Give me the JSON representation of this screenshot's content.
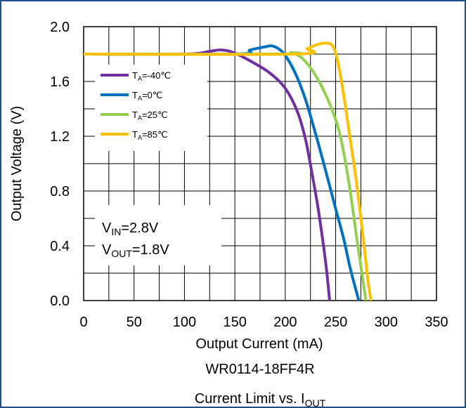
{
  "chart_data": {
    "type": "line",
    "xlabel": "Output Current (mA)",
    "ylabel": "Output Voltage (V)",
    "xlim": [
      0,
      350
    ],
    "ylim": [
      0.0,
      2.0
    ],
    "x_ticks": [
      "0",
      "50",
      "100",
      "150",
      "200",
      "250",
      "300",
      "350"
    ],
    "y_ticks": [
      "0.0",
      "0.4",
      "0.8",
      "1.2",
      "1.6",
      "2.0"
    ],
    "grid": true,
    "legend_position": "top-left",
    "series": [
      {
        "name_main": "T",
        "name_sub": "A",
        "name_tail": "=-40℃",
        "color": "#7030A0",
        "points": [
          [
            0,
            1.8
          ],
          [
            100,
            1.8
          ],
          [
            125,
            1.82
          ],
          [
            135,
            1.83
          ],
          [
            145,
            1.82
          ],
          [
            155,
            1.79
          ],
          [
            170,
            1.73
          ],
          [
            185,
            1.66
          ],
          [
            200,
            1.55
          ],
          [
            212,
            1.38
          ],
          [
            220,
            1.18
          ],
          [
            226,
            0.95
          ],
          [
            232,
            0.7
          ],
          [
            237,
            0.45
          ],
          [
            241,
            0.22
          ],
          [
            244,
            0.0
          ]
        ]
      },
      {
        "name_main": "T",
        "name_sub": "A",
        "name_tail": "=0℃",
        "color": "#0070C0",
        "points": [
          [
            0,
            1.8
          ],
          [
            150,
            1.8
          ],
          [
            165,
            1.83
          ],
          [
            178,
            1.85
          ],
          [
            186,
            1.86
          ],
          [
            193,
            1.84
          ],
          [
            200,
            1.79
          ],
          [
            210,
            1.66
          ],
          [
            220,
            1.47
          ],
          [
            230,
            1.22
          ],
          [
            240,
            0.95
          ],
          [
            250,
            0.67
          ],
          [
            258,
            0.45
          ],
          [
            264,
            0.25
          ],
          [
            270,
            0.08
          ],
          [
            273,
            0.0
          ]
        ]
      },
      {
        "name_main": "T",
        "name_sub": "A",
        "name_tail": "=25℃",
        "color": "#92D050",
        "points": [
          [
            0,
            1.8
          ],
          [
            200,
            1.8
          ],
          [
            205,
            1.81
          ],
          [
            215,
            1.78
          ],
          [
            225,
            1.7
          ],
          [
            235,
            1.58
          ],
          [
            245,
            1.42
          ],
          [
            253,
            1.25
          ],
          [
            260,
            1.0
          ],
          [
            266,
            0.72
          ],
          [
            271,
            0.45
          ],
          [
            275,
            0.25
          ],
          [
            278,
            0.1
          ],
          [
            280,
            0.0
          ]
        ]
      },
      {
        "name_main": "T",
        "name_sub": "A",
        "name_tail": "=85℃",
        "color": "#FFC000",
        "points": [
          [
            0,
            1.8
          ],
          [
            210,
            1.8
          ],
          [
            222,
            1.84
          ],
          [
            232,
            1.87
          ],
          [
            240,
            1.88
          ],
          [
            247,
            1.86
          ],
          [
            252,
            1.75
          ],
          [
            258,
            1.5
          ],
          [
            264,
            1.2
          ],
          [
            270,
            0.9
          ],
          [
            275,
            0.6
          ],
          [
            279,
            0.35
          ],
          [
            282,
            0.15
          ],
          [
            285,
            0.0
          ]
        ]
      }
    ],
    "annotations": {
      "vin_main": "V",
      "vin_sub": "IN",
      "vin_tail": "=2.8V",
      "vout_main": "V",
      "vout_sub": "OUT",
      "vout_tail": "=1.8V"
    }
  },
  "caption": {
    "part_number": "WR0114-18FF4R",
    "title_main": "Current Limit vs. I",
    "title_sub": "OUT"
  }
}
